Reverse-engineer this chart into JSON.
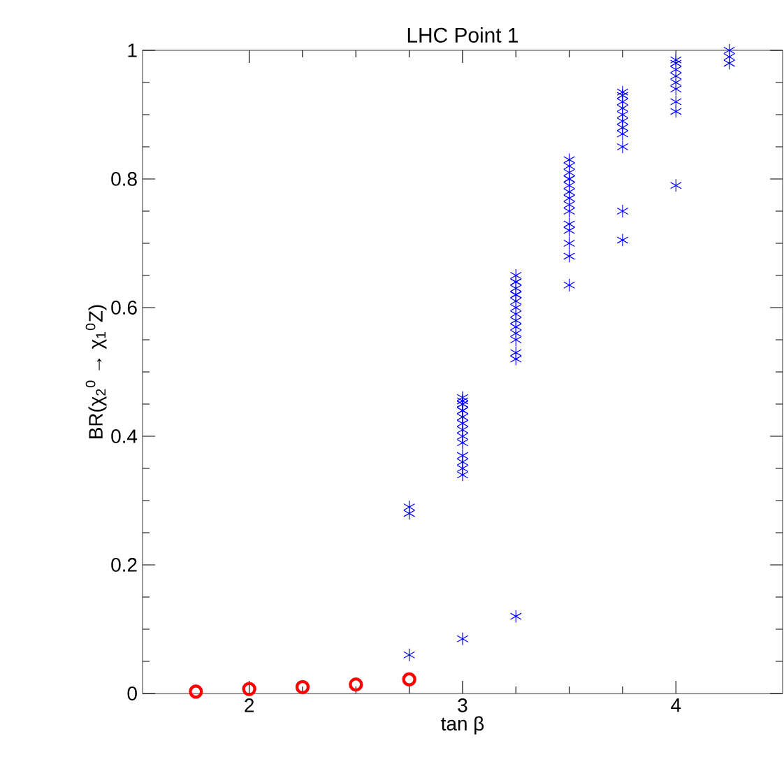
{
  "chart_data": {
    "type": "scatter",
    "title": "LHC Point 1",
    "xlabel": "tan β",
    "ylabel": "BR(χ$_{2}$$^{0}$ → χ$_{1}$$^{0}$Z)",
    "xlim": [
      1.5,
      4.5
    ],
    "ylim": [
      0,
      1
    ],
    "xticks": [
      2,
      3,
      4
    ],
    "yticks": [
      0,
      0.2,
      0.4,
      0.6,
      0.8,
      1
    ],
    "grid": false,
    "series": [
      {
        "color": "#0000ff",
        "marker": "cross",
        "x": [
          2.75,
          2.75,
          2.75,
          3,
          3,
          3,
          3,
          3,
          3,
          3,
          3,
          3,
          3,
          3,
          3,
          3,
          3,
          3,
          3,
          3.25,
          3.25,
          3.25,
          3.25,
          3.25,
          3.25,
          3.25,
          3.25,
          3.25,
          3.25,
          3.25,
          3.25,
          3.25,
          3.25,
          3.25,
          3.25,
          3.5,
          3.5,
          3.5,
          3.5,
          3.5,
          3.5,
          3.5,
          3.5,
          3.5,
          3.5,
          3.5,
          3.5,
          3.5,
          3.5,
          3.5,
          3.75,
          3.75,
          3.75,
          3.75,
          3.75,
          3.75,
          3.75,
          3.75,
          3.75,
          3.75,
          3.75,
          4,
          4,
          4,
          4,
          4,
          4,
          4,
          4,
          4,
          4.25,
          4.25,
          4.25
        ],
        "values": [
          0.06,
          0.29,
          0.28,
          0.085,
          0.34,
          0.35,
          0.36,
          0.37,
          0.39,
          0.4,
          0.41,
          0.42,
          0.43,
          0.44,
          0.45,
          0.455,
          0.46,
          0.45,
          0.44,
          0.12,
          0.52,
          0.53,
          0.55,
          0.56,
          0.57,
          0.58,
          0.59,
          0.6,
          0.61,
          0.62,
          0.63,
          0.64,
          0.65,
          0.64,
          0.62,
          0.635,
          0.68,
          0.7,
          0.72,
          0.73,
          0.75,
          0.76,
          0.77,
          0.78,
          0.79,
          0.8,
          0.81,
          0.82,
          0.83,
          0.8,
          0.705,
          0.75,
          0.85,
          0.87,
          0.88,
          0.89,
          0.9,
          0.91,
          0.92,
          0.93,
          0.935,
          0.79,
          0.905,
          0.92,
          0.94,
          0.95,
          0.96,
          0.97,
          0.98,
          0.985,
          0.98,
          0.99,
          1.0
        ]
      },
      {
        "color": "#ff0000",
        "marker": "circle",
        "x": [
          1.75,
          2,
          2.25,
          2.5,
          2.75
        ],
        "values": [
          0.003,
          0.007,
          0.01,
          0.014,
          0.022
        ]
      }
    ]
  }
}
